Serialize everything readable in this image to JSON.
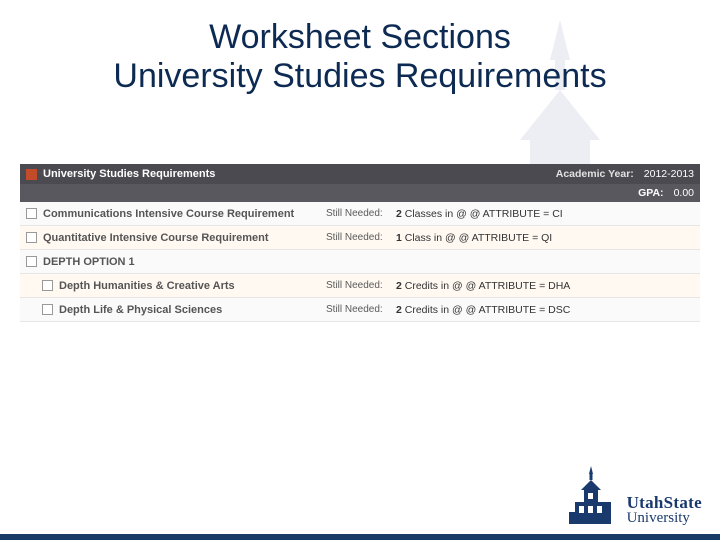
{
  "title_line1": "Worksheet Sections",
  "title_line2": "University Studies Requirements",
  "colors": {
    "title": "#0d2a52",
    "header_bg": "#4a4a50",
    "subheader_bg": "#58585e",
    "row_alt_bg": "#fff9f2",
    "logo_text": "#1a3a6e",
    "accent_bar": "#173a66",
    "unchecked_border": "#999999",
    "checked_fill": "#c24b2a"
  },
  "header": {
    "icon_state": "incomplete",
    "title": "University Studies Requirements",
    "year_label": "Academic Year:",
    "year_value": "2012-2013",
    "gpa_label": "GPA:",
    "gpa_value": "0.00"
  },
  "still_needed_label": "Still Needed:",
  "rows": [
    {
      "type": "req",
      "label": "Communications Intensive Course Requirement",
      "still": "2 Classes in @ @ ATTRIBUTE = CI",
      "alt": false,
      "sub": false
    },
    {
      "type": "req",
      "label": "Quantitative Intensive Course Requirement",
      "still": "1 Class in @ @ ATTRIBUTE = QI",
      "alt": true,
      "sub": false
    },
    {
      "type": "group",
      "label": "DEPTH OPTION 1",
      "still": "",
      "alt": false,
      "sub": false
    },
    {
      "type": "req",
      "label": "Depth Humanities & Creative Arts",
      "still": "2 Credits in @ @ ATTRIBUTE = DHA",
      "alt": true,
      "sub": true
    },
    {
      "type": "req",
      "label": "Depth Life & Physical Sciences",
      "still": "2 Credits in @ @ ATTRIBUTE = DSC",
      "alt": false,
      "sub": true
    }
  ],
  "logo": {
    "line1": "UtahState",
    "line2": "University"
  }
}
